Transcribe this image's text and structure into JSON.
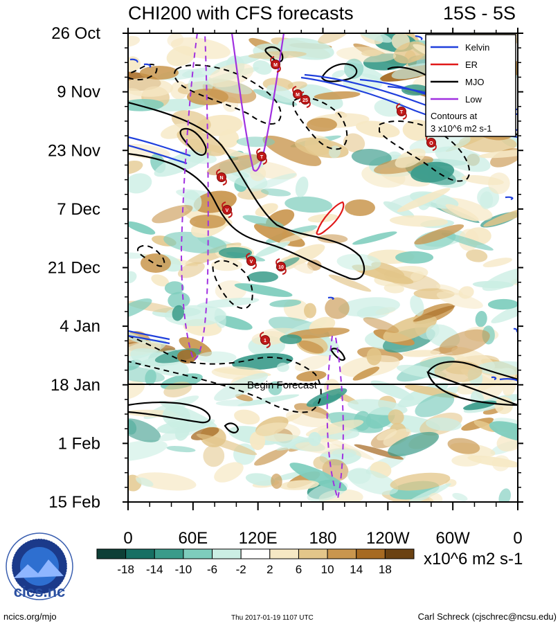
{
  "chart_data": {
    "type": "heatmap",
    "title": "CHI200 with CFS forecasts",
    "region": "15S - 5S",
    "x_ticks": [
      "0",
      "60E",
      "120E",
      "180",
      "120W",
      "60W",
      "0"
    ],
    "y_ticks": [
      "26 Oct",
      "9 Nov",
      "23 Nov",
      "7 Dec",
      "21 Dec",
      "4 Jan",
      "18 Jan",
      "1 Feb",
      "15 Feb"
    ],
    "forecast_label": "Begin Forecast",
    "legend": {
      "items": [
        {
          "name": "Kelvin",
          "color": "#1f3fdc"
        },
        {
          "name": "ER",
          "color": "#e01818"
        },
        {
          "name": "MJO",
          "color": "#000000"
        },
        {
          "name": "Low",
          "color": "#a030e0"
        }
      ],
      "contour_note_1": "Contours at",
      "contour_note_2": "3 x10^6 m2 s-1"
    },
    "colorbar": {
      "labels": [
        "-18",
        "-14",
        "-10",
        "-6",
        "-2",
        "2",
        "6",
        "10",
        "14",
        "18"
      ],
      "colors": [
        "#0e3f36",
        "#176f63",
        "#3a9b8a",
        "#7ecdbd",
        "#cbeee4",
        "#ffffff",
        "#f6e8c4",
        "#e3c68a",
        "#c9964e",
        "#a66a22",
        "#6b4212"
      ],
      "units": "x10^6 m2 s-1"
    },
    "storm_labels": [
      "M",
      "M",
      "25",
      "T",
      "T",
      "N",
      "V",
      "V",
      "10",
      "1",
      "O"
    ]
  },
  "footer": {
    "left": "ncics.org/mjo",
    "center": "Thu 2017-01-19 1107 UTC",
    "right": "Carl Schreck (cjschrec@ncsu.edu)"
  },
  "logo": {
    "text": "cics.nc",
    "ring_text": "Cooperative Institute for Climate and Satellites"
  }
}
